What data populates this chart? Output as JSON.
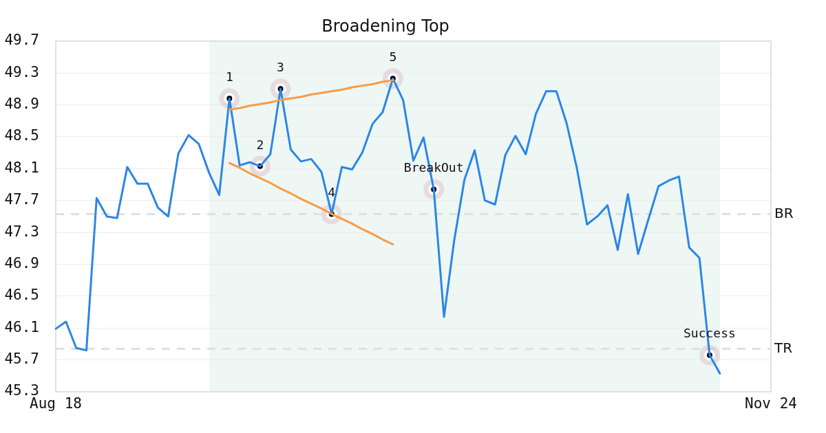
{
  "chart_data": {
    "type": "line",
    "title": "Broadening Top",
    "categories": [
      "Aug 18",
      null,
      null,
      null,
      null,
      null,
      null,
      null,
      null,
      null,
      null,
      null,
      null,
      null,
      null,
      null,
      null,
      null,
      null,
      null,
      null,
      null,
      null,
      null,
      null,
      null,
      null,
      null,
      null,
      null,
      null,
      null,
      null,
      null,
      null,
      null,
      null,
      null,
      null,
      null,
      null,
      null,
      null,
      null,
      null,
      null,
      null,
      null,
      null,
      null,
      null,
      null,
      null,
      null,
      null,
      null,
      null,
      null,
      null,
      null,
      null,
      null,
      null,
      null,
      null,
      null,
      null,
      null,
      null,
      null,
      "Nov 24"
    ],
    "ylim": [
      45.3,
      49.7
    ],
    "yticks": [
      45.3,
      45.7,
      46.1,
      46.5,
      46.9,
      47.3,
      47.7,
      48.1,
      48.5,
      48.9,
      49.3,
      49.7
    ],
    "grid": "y",
    "series": [
      {
        "color": "#2b85e8",
        "values": [
          46.09,
          46.18,
          45.85,
          45.82,
          47.73,
          47.5,
          47.48,
          48.12,
          47.91,
          47.91,
          47.61,
          47.5,
          48.29,
          48.52,
          48.41,
          48.05,
          47.77,
          48.98,
          48.14,
          48.18,
          48.13,
          48.28,
          49.1,
          48.34,
          48.19,
          48.22,
          48.06,
          47.53,
          48.12,
          48.09,
          48.3,
          48.66,
          48.81,
          49.23,
          48.96,
          48.2,
          48.49,
          47.84,
          46.24,
          47.2,
          47.96,
          48.33,
          47.7,
          47.65,
          48.27,
          48.51,
          48.28,
          48.79,
          49.07,
          49.07,
          48.67,
          48.11,
          47.4,
          47.5,
          47.64,
          47.08,
          47.78,
          47.03,
          47.46,
          47.88,
          47.95,
          48.0,
          47.11,
          46.98,
          45.76,
          45.53,
          null,
          null,
          null,
          null,
          null
        ]
      },
      {
        "color": "#f99b44",
        "values": [
          null,
          null,
          null,
          null,
          null,
          null,
          null,
          null,
          null,
          null,
          null,
          null,
          null,
          null,
          null,
          null,
          null,
          48.84,
          48.86,
          48.89,
          48.91,
          48.93,
          48.96,
          48.98,
          49.0,
          49.03,
          49.05,
          49.07,
          49.09,
          49.12,
          49.14,
          49.16,
          49.19,
          49.21,
          null,
          null,
          null,
          null,
          null,
          null,
          null,
          null,
          null,
          null,
          null,
          null,
          null,
          null,
          null,
          null,
          null,
          null,
          null,
          null,
          null,
          null,
          null,
          null,
          null,
          null,
          null,
          null,
          null,
          null,
          null,
          null,
          null,
          null,
          null,
          null,
          null
        ]
      },
      {
        "color": "#f99b44",
        "values": [
          null,
          null,
          null,
          null,
          null,
          null,
          null,
          null,
          null,
          null,
          null,
          null,
          null,
          null,
          null,
          null,
          null,
          48.17,
          48.11,
          48.04,
          47.98,
          47.92,
          47.85,
          47.79,
          47.72,
          47.66,
          47.6,
          47.53,
          47.47,
          47.41,
          47.34,
          47.28,
          47.21,
          47.15,
          null,
          null,
          null,
          null,
          null,
          null,
          null,
          null,
          null,
          null,
          null,
          null,
          null,
          null,
          null,
          null,
          null,
          null,
          null,
          null,
          null,
          null,
          null,
          null,
          null,
          null,
          null,
          null,
          null,
          null,
          null,
          null,
          null,
          null,
          null,
          null,
          null
        ]
      },
      {
        "type": "scatter",
        "color": "#000000",
        "marker": "circle",
        "values": [
          null,
          null,
          null,
          null,
          null,
          null,
          null,
          null,
          null,
          null,
          null,
          null,
          null,
          null,
          null,
          null,
          null,
          48.98,
          null,
          null,
          48.13,
          null,
          49.1,
          null,
          null,
          null,
          null,
          47.53,
          null,
          null,
          null,
          null,
          null,
          49.23,
          null,
          null,
          null,
          47.84,
          null,
          null,
          null,
          null,
          null,
          null,
          null,
          null,
          null,
          null,
          null,
          null,
          null,
          null,
          null,
          null,
          null,
          null,
          null,
          null,
          null,
          null,
          null,
          null,
          null,
          null,
          45.76,
          null,
          null,
          null,
          null,
          null,
          null
        ]
      }
    ],
    "ref_lines": [
      {
        "axis": "y",
        "value": 47.53,
        "label": "BR",
        "color": "#e0e0e0",
        "line_style": "dashed"
      },
      {
        "axis": "y",
        "value": 45.84,
        "label": "TR",
        "color": "#e0e0e0",
        "line_style": "dashed"
      }
    ],
    "annotations": [
      "1",
      "2",
      "3",
      "4",
      "5",
      "BreakOut",
      "Success"
    ]
  }
}
